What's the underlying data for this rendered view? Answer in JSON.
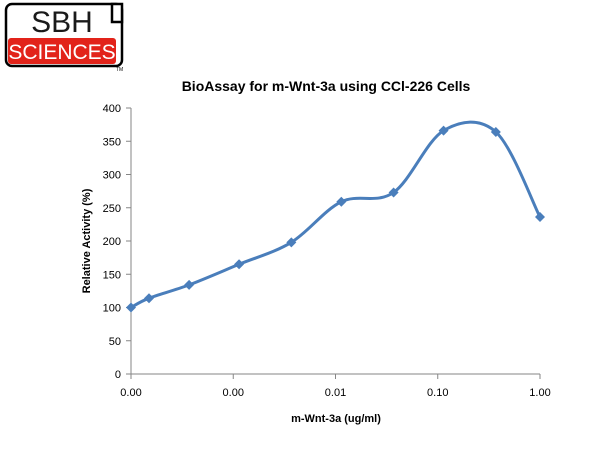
{
  "logo": {
    "line1": "SBH",
    "line2": "SCIENCES",
    "tm": "TM",
    "colors": {
      "frame": "#000000",
      "band": "#e2231a",
      "text_top": "#1a1a1a",
      "text_band": "#ffffff"
    }
  },
  "chart_data": {
    "type": "line",
    "title": "BioAssay for m-Wnt-3a using CCl-226 Cells",
    "xlabel": "m-Wnt-3a (ug/ml)",
    "ylabel": "Relative Activity (%)",
    "x_scale": "log",
    "x_range": [
      0.0001,
      1.0
    ],
    "x_ticks": [
      0.0001,
      0.001,
      0.01,
      0.1,
      1.0
    ],
    "x_tick_labels": [
      "0.00",
      "0.00",
      "0.01",
      "0.10",
      "1.00"
    ],
    "ylim": [
      0,
      400
    ],
    "y_ticks": [
      0,
      50,
      100,
      150,
      200,
      250,
      300,
      350,
      400
    ],
    "y_tick_labels": [
      "0",
      "50",
      "100",
      "150",
      "200",
      "250",
      "300",
      "350",
      "400"
    ],
    "grid": false,
    "legend": "none",
    "color": "#4a7ebb",
    "series": [
      {
        "x": [
          0.0001,
          0.00015,
          0.00037,
          0.00114,
          0.0037,
          0.0114,
          0.037,
          0.114,
          0.37,
          1.0
        ],
        "values": [
          100,
          114,
          134,
          165,
          198,
          259,
          273,
          366,
          364,
          236
        ]
      }
    ]
  }
}
